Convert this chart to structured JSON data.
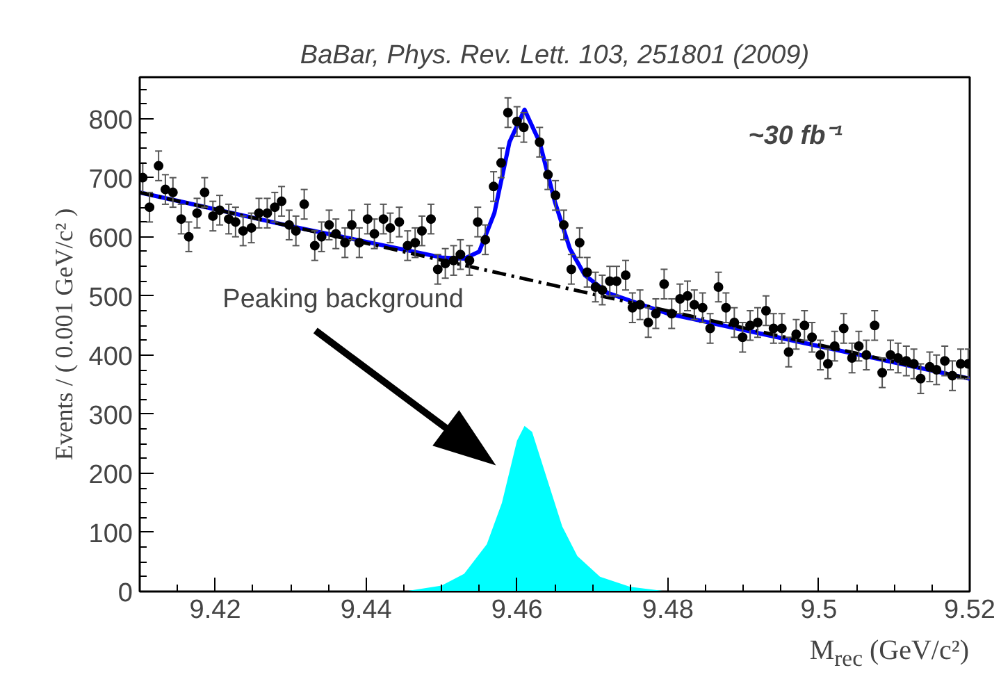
{
  "chart_data": {
    "type": "scatter",
    "title": "BaBar, Phys. Rev. Lett. 103, 251801 (2009)",
    "xlabel": "M$_{rec}$ (GeV/c²)",
    "ylabel": "Events / ( 0.001 GeV/c² )",
    "xlim": [
      9.41,
      9.52
    ],
    "ylim": [
      0,
      870
    ],
    "xticks": [
      9.42,
      9.44,
      9.46,
      9.48,
      9.5,
      9.52
    ],
    "yticks": [
      0,
      100,
      200,
      300,
      400,
      500,
      600,
      700,
      800
    ],
    "grid": false,
    "annotations": [
      "Peaking background",
      "~30 fb⁻¹"
    ],
    "series": [
      {
        "color": "#000000",
        "marker": "circle",
        "x": [
          9.4104,
          9.4113,
          9.4125,
          9.4134,
          9.4144,
          9.4155,
          9.4165,
          9.4176,
          9.4186,
          9.4197,
          9.4206,
          9.4218,
          9.4227,
          9.4237,
          9.4248,
          9.4258,
          9.4269,
          9.4279,
          9.4288,
          9.4298,
          9.4307,
          9.4318,
          9.4332,
          9.4341,
          9.4351,
          9.436,
          9.4372,
          9.4381,
          9.4391,
          9.4402,
          9.4411,
          9.4423,
          9.4432,
          9.4444,
          9.4455,
          9.4465,
          9.4474,
          9.4486,
          9.4495,
          9.4505,
          9.4516,
          9.4525,
          9.4537,
          9.4548,
          9.4558,
          9.4569,
          9.4579,
          9.4588,
          9.46,
          9.4609,
          9.463,
          9.4641,
          9.4651,
          9.4662,
          9.4672,
          9.4683,
          9.4693,
          9.4704,
          9.4713,
          9.4723,
          9.4732,
          9.4744,
          9.4753,
          9.4763,
          9.4774,
          9.4784,
          9.4795,
          9.4805,
          9.4816,
          9.4826,
          9.4835,
          9.4846,
          9.4856,
          9.4867,
          9.4877,
          9.4888,
          9.4899,
          9.4909,
          9.4919,
          9.493,
          9.494,
          9.4951,
          9.496,
          9.497,
          9.4981,
          9.4991,
          9.5002,
          9.5012,
          9.5021,
          9.5033,
          9.5044,
          9.5053,
          9.5063,
          9.5074,
          9.5084,
          9.5095,
          9.5105,
          9.5116,
          9.5126,
          9.5135,
          9.5147,
          9.5156,
          9.5167,
          9.5177,
          9.5188,
          9.5198
        ],
        "values": [
          700,
          650,
          720,
          680,
          675,
          630,
          600,
          640,
          675,
          635,
          645,
          630,
          625,
          610,
          615,
          640,
          640,
          650,
          660,
          620,
          610,
          655,
          585,
          600,
          620,
          605,
          590,
          620,
          590,
          630,
          605,
          630,
          615,
          625,
          585,
          590,
          610,
          630,
          545,
          555,
          560,
          570,
          560,
          625,
          595,
          685,
          725,
          810,
          795,
          785,
          760,
          705,
          670,
          620,
          545,
          590,
          540,
          515,
          510,
          525,
          525,
          535,
          480,
          485,
          455,
          470,
          520,
          470,
          495,
          500,
          485,
          480,
          445,
          515,
          480,
          455,
          430,
          450,
          455,
          475,
          445,
          445,
          405,
          435,
          450,
          430,
          400,
          385,
          415,
          445,
          395,
          415,
          400,
          450,
          370,
          400,
          395,
          390,
          385,
          360,
          380,
          375,
          390,
          365,
          385,
          385
        ],
        "errors": [
          25,
          25,
          25,
          25,
          25,
          25,
          25,
          25,
          25,
          25,
          25,
          25,
          25,
          25,
          25,
          25,
          25,
          25,
          25,
          25,
          25,
          25,
          25,
          25,
          25,
          25,
          25,
          25,
          25,
          25,
          25,
          25,
          25,
          25,
          25,
          25,
          25,
          25,
          25,
          25,
          25,
          25,
          25,
          25,
          25,
          25,
          25,
          25,
          25,
          25,
          25,
          25,
          25,
          25,
          25,
          25,
          25,
          25,
          25,
          25,
          25,
          25,
          25,
          25,
          25,
          25,
          25,
          25,
          25,
          25,
          25,
          25,
          25,
          25,
          25,
          25,
          25,
          25,
          25,
          25,
          25,
          25,
          25,
          25,
          25,
          25,
          25,
          25,
          25,
          25,
          25,
          25,
          25,
          25,
          25,
          25,
          25,
          25,
          25,
          25,
          25,
          25,
          25,
          25,
          25,
          25
        ]
      },
      {
        "type": "line",
        "color": "#0000ff",
        "line_style": "solid",
        "x": [
          9.41,
          9.43,
          9.45,
          9.453,
          9.455,
          9.457,
          9.459,
          9.461,
          9.463,
          9.465,
          9.467,
          9.469,
          9.472,
          9.48,
          9.5,
          9.52
        ],
        "values": [
          675,
          618,
          565,
          563,
          575,
          640,
          760,
          815,
          760,
          660,
          580,
          535,
          505,
          470,
          415,
          360
        ]
      },
      {
        "type": "line",
        "color": "#000000",
        "line_style": "dashed",
        "x": [
          9.41,
          9.52
        ],
        "values": [
          675,
          360
        ]
      },
      {
        "type": "area",
        "color": "#00ffff",
        "x": [
          9.445,
          9.45,
          9.453,
          9.456,
          9.458,
          9.46,
          9.461,
          9.462,
          9.464,
          9.466,
          9.468,
          9.471,
          9.475,
          9.48
        ],
        "values": [
          0,
          10,
          30,
          80,
          150,
          255,
          280,
          270,
          190,
          110,
          60,
          25,
          8,
          0
        ]
      }
    ]
  }
}
